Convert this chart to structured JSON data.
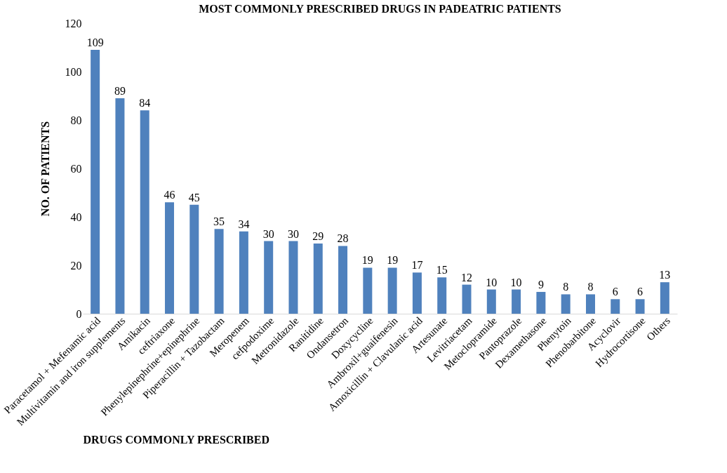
{
  "chart_data": {
    "type": "bar",
    "title": "MOST COMMONLY PRESCRIBED DRUGS IN PADEATRIC PATIENTS",
    "xlabel": "DRUGS COMMONLY PRESCRIBED",
    "ylabel": "NO. OF PATIENTS",
    "categories": [
      "Paracetamol + Mefenamic acid",
      "Multivitamin and iron supplements",
      "Amikacin",
      "ceftriaxone",
      "Phenylepinephrine+epinephrine",
      "Piperacillin + Tazobactam",
      "Meropenem",
      "cefpodoxime",
      "Metronidazole",
      "Ranitidine",
      "Ondansetron",
      "Doxycycline",
      "Ambroxil+guaifenesin",
      "Amoxicillin + Clavulanic acid",
      "Artesunate",
      "Levitriacetam",
      "Metoclopramide",
      "Pantoprazole",
      "Dexamethasone",
      "Phenytoin",
      "Phenobarbitone",
      "Acyclovir",
      "Hydrocortisone",
      "Others"
    ],
    "values": [
      109,
      89,
      84,
      46,
      45,
      35,
      34,
      30,
      30,
      29,
      28,
      19,
      19,
      17,
      15,
      12,
      10,
      10,
      9,
      8,
      8,
      6,
      6,
      13
    ],
    "color": "#4f81bd",
    "ylim": [
      0,
      120
    ],
    "yticks": [
      0,
      20,
      40,
      60,
      80,
      100,
      120
    ],
    "data_labels": true,
    "grid": false
  }
}
